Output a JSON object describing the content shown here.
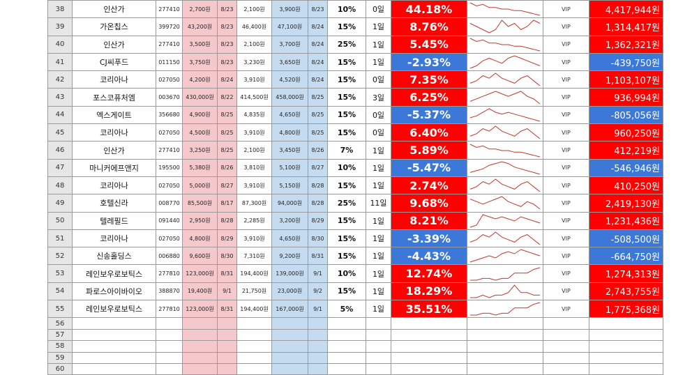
{
  "colors": {
    "positive": "#ff0000",
    "negative": "#3b78d8",
    "buy_col": "#f5c9cc",
    "sell_col": "#c5dbef",
    "spark": "#c0392b"
  },
  "grade_label": "VIP",
  "rows": [
    {
      "no": "38",
      "name": "인산가",
      "code": "277410",
      "buy": "2,700원",
      "buy_date": "8/23",
      "low": "2,100원",
      "sell": "3,900원",
      "sell_date": "8/23",
      "weight": "10%",
      "days": "0일",
      "ret": "44.18%",
      "profit": "4,417,944원",
      "neg": false,
      "spark": [
        8,
        6,
        7,
        5,
        5,
        4,
        4,
        3,
        3,
        2,
        1,
        0
      ]
    },
    {
      "no": "39",
      "name": "가온칩스",
      "code": "399720",
      "buy": "43,200원",
      "buy_date": "8/23",
      "low": "46,400원",
      "sell": "47,100원",
      "sell_date": "8/24",
      "weight": "15%",
      "days": "1일",
      "ret": "8.76%",
      "profit": "1,314,417원",
      "neg": false,
      "spark": [
        5,
        4,
        3,
        2,
        3,
        6,
        4,
        5,
        3,
        4,
        6,
        5
      ]
    },
    {
      "no": "40",
      "name": "인산가",
      "code": "277410",
      "buy": "3,500원",
      "buy_date": "8/23",
      "low": "2,100원",
      "sell": "3,700원",
      "sell_date": "8/24",
      "weight": "25%",
      "days": "1일",
      "ret": "5.45%",
      "profit": "1,362,321원",
      "neg": false,
      "spark": [
        8,
        6,
        7,
        5,
        5,
        4,
        4,
        3,
        3,
        2,
        1,
        0
      ]
    },
    {
      "no": "41",
      "name": "CJ씨푸드",
      "code": "011150",
      "buy": "3,750원",
      "buy_date": "8/23",
      "low": "3,230원",
      "sell": "3,650원",
      "sell_date": "8/24",
      "weight": "15%",
      "days": "1일",
      "ret": "-2.93%",
      "profit": "-439,750원",
      "neg": true,
      "spark": [
        2,
        3,
        5,
        6,
        5,
        4,
        6,
        7,
        6,
        5,
        4,
        3
      ]
    },
    {
      "no": "42",
      "name": "코리아나",
      "code": "027050",
      "buy": "4,200원",
      "buy_date": "8/24",
      "low": "3,910원",
      "sell": "4,520원",
      "sell_date": "8/24",
      "weight": "15%",
      "days": "0일",
      "ret": "7.35%",
      "profit": "1,103,107원",
      "neg": false,
      "spark": [
        3,
        4,
        6,
        5,
        7,
        5,
        4,
        3,
        5,
        6,
        4,
        2
      ]
    },
    {
      "no": "43",
      "name": "포스코퓨처엠",
      "code": "003670",
      "buy": "430,000원",
      "buy_date": "8/22",
      "low": "414,500원",
      "sell": "458,000원",
      "sell_date": "8/25",
      "weight": "15%",
      "days": "3일",
      "ret": "6.25%",
      "profit": "936,994원",
      "neg": false,
      "spark": [
        2,
        3,
        4,
        5,
        6,
        5,
        4,
        5,
        6,
        4,
        3,
        1
      ]
    },
    {
      "no": "44",
      "name": "엑스게이트",
      "code": "356680",
      "buy": "4,900원",
      "buy_date": "8/25",
      "low": "4,835원",
      "sell": "4,650원",
      "sell_date": "8/25",
      "weight": "15%",
      "days": "0일",
      "ret": "-5.37%",
      "profit": "-805,056원",
      "neg": true,
      "spark": [
        3,
        4,
        6,
        8,
        6,
        5,
        6,
        5,
        4,
        3,
        2,
        1
      ]
    },
    {
      "no": "45",
      "name": "코리아나",
      "code": "027050",
      "buy": "4,500원",
      "buy_date": "8/25",
      "low": "3,910원",
      "sell": "4,800원",
      "sell_date": "8/25",
      "weight": "15%",
      "days": "0일",
      "ret": "6.40%",
      "profit": "960,250원",
      "neg": false,
      "spark": [
        3,
        4,
        6,
        5,
        7,
        5,
        4,
        3,
        5,
        6,
        4,
        2
      ]
    },
    {
      "no": "46",
      "name": "인산가",
      "code": "277410",
      "buy": "3,250원",
      "buy_date": "8/25",
      "low": "2,100원",
      "sell": "3,450원",
      "sell_date": "8/26",
      "weight": "7%",
      "days": "1일",
      "ret": "5.89%",
      "profit": "412,219원",
      "neg": false,
      "spark": [
        8,
        6,
        7,
        5,
        5,
        4,
        4,
        3,
        3,
        2,
        1,
        0
      ]
    },
    {
      "no": "47",
      "name": "마니커에프앤지",
      "code": "195500",
      "buy": "5,380원",
      "buy_date": "8/26",
      "low": "3,810원",
      "sell": "5,100원",
      "sell_date": "8/27",
      "weight": "10%",
      "days": "1일",
      "ret": "-5.47%",
      "profit": "-546,946원",
      "neg": true,
      "spark": [
        1,
        2,
        3,
        5,
        6,
        7,
        6,
        4,
        3,
        2,
        1,
        0
      ]
    },
    {
      "no": "48",
      "name": "코리아나",
      "code": "027050",
      "buy": "5,000원",
      "buy_date": "8/27",
      "low": "3,910원",
      "sell": "5,150원",
      "sell_date": "8/28",
      "weight": "15%",
      "days": "1일",
      "ret": "2.74%",
      "profit": "410,250원",
      "neg": false,
      "spark": [
        3,
        4,
        6,
        5,
        7,
        5,
        4,
        3,
        5,
        6,
        4,
        2
      ]
    },
    {
      "no": "49",
      "name": "호텔신라",
      "code": "008770",
      "buy": "85,500원",
      "buy_date": "8/17",
      "low": "87,300원",
      "sell": "94,000원",
      "sell_date": "8/28",
      "weight": "25%",
      "days": "11일",
      "ret": "9.68%",
      "profit": "2,419,130원",
      "neg": false,
      "spark": [
        6,
        5,
        4,
        5,
        6,
        7,
        5,
        4,
        3,
        5,
        4,
        2
      ]
    },
    {
      "no": "50",
      "name": "텔레필드",
      "code": "091440",
      "buy": "2,950원",
      "buy_date": "8/28",
      "low": "2,285원",
      "sell": "3,200원",
      "sell_date": "8/29",
      "weight": "15%",
      "days": "1일",
      "ret": "8.21%",
      "profit": "1,231,436원",
      "neg": false,
      "spark": [
        0,
        1,
        6,
        5,
        4,
        5,
        4,
        3,
        5,
        4,
        3,
        2
      ]
    },
    {
      "no": "51",
      "name": "코리아나",
      "code": "027050",
      "buy": "4,800원",
      "buy_date": "8/29",
      "low": "3,910원",
      "sell": "4,650원",
      "sell_date": "8/30",
      "weight": "15%",
      "days": "1일",
      "ret": "-3.39%",
      "profit": "-508,500원",
      "neg": true,
      "spark": [
        3,
        4,
        6,
        5,
        7,
        5,
        4,
        3,
        5,
        6,
        4,
        2
      ]
    },
    {
      "no": "52",
      "name": "신송홀딩스",
      "code": "006880",
      "buy": "9,600원",
      "buy_date": "8/30",
      "low": "7,310원",
      "sell": "9,200원",
      "sell_date": "8/31",
      "weight": "15%",
      "days": "1일",
      "ret": "-4.43%",
      "profit": "-664,750원",
      "neg": true,
      "spark": [
        1,
        2,
        3,
        4,
        3,
        5,
        6,
        5,
        7,
        6,
        5,
        4
      ]
    },
    {
      "no": "53",
      "name": "레인보우로보틱스",
      "code": "277810",
      "buy": "123,000원",
      "buy_date": "8/31",
      "low": "194,400원",
      "sell": "139,000원",
      "sell_date": "9/1",
      "weight": "10%",
      "days": "1일",
      "ret": "12.74%",
      "profit": "1,274,313원",
      "neg": false,
      "spark": [
        0,
        0,
        1,
        1,
        0,
        1,
        1,
        4,
        4,
        4,
        6,
        7
      ]
    },
    {
      "no": "54",
      "name": "파로스아이바이오",
      "code": "388870",
      "buy": "19,400원",
      "buy_date": "9/1",
      "low": "21,750원",
      "sell": "23,000원",
      "sell_date": "9/2",
      "weight": "15%",
      "days": "1일",
      "ret": "18.29%",
      "profit": "2,743,755원",
      "neg": false,
      "spark": [
        1,
        1,
        2,
        1,
        2,
        2,
        3,
        6,
        3,
        3,
        2,
        2
      ]
    },
    {
      "no": "55",
      "name": "레인보우로보틱스",
      "code": "277810",
      "buy": "123,000원",
      "buy_date": "8/31",
      "low": "194,400원",
      "sell": "167,000원",
      "sell_date": "9/1",
      "weight": "5%",
      "days": "1일",
      "ret": "35.51%",
      "profit": "1,775,368원",
      "neg": false,
      "spark": [
        0,
        0,
        1,
        1,
        0,
        1,
        1,
        4,
        4,
        4,
        6,
        7
      ]
    }
  ],
  "blank_rows": [
    "56",
    "57",
    "58",
    "59",
    "60"
  ]
}
